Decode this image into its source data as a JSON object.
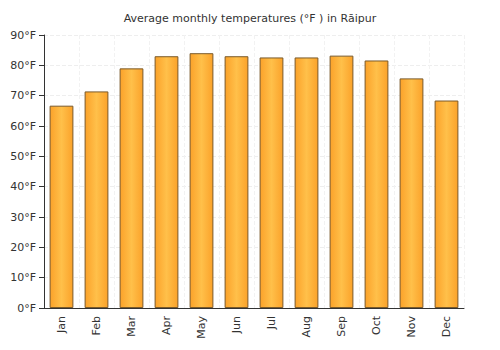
{
  "chart_data": {
    "type": "bar",
    "title": "Average monthly temperatures (°F ) in Rāipur",
    "categories": [
      "Jan",
      "Feb",
      "Mar",
      "Apr",
      "May",
      "Jun",
      "Jul",
      "Aug",
      "Sep",
      "Oct",
      "Nov",
      "Dec"
    ],
    "values": [
      66.7,
      71.4,
      79.0,
      83.0,
      84.0,
      83.0,
      82.6,
      82.6,
      83.2,
      81.6,
      75.7,
      68.4
    ],
    "color": "#fba22a",
    "ylim": [
      0,
      90
    ],
    "yticks": [
      {
        "value": 0,
        "label": "0°F"
      },
      {
        "value": 10,
        "label": "10°F"
      },
      {
        "value": 20,
        "label": "20°F"
      },
      {
        "value": 30,
        "label": "30°F"
      },
      {
        "value": 40,
        "label": "40°F"
      },
      {
        "value": 50,
        "label": "50°F"
      },
      {
        "value": 60,
        "label": "60°F"
      },
      {
        "value": 70,
        "label": "70°F"
      },
      {
        "value": 80,
        "label": "80°F"
      },
      {
        "value": 90,
        "label": "90°F"
      }
    ],
    "grid": true
  }
}
